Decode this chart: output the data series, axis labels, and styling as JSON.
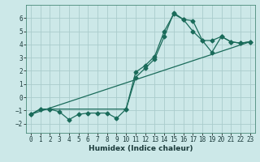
{
  "title": "",
  "xlabel": "Humidex (Indice chaleur)",
  "background_color": "#cce8e8",
  "grid_color": "#aacccc",
  "line_color": "#1a6b5a",
  "xlim": [
    -0.5,
    23.5
  ],
  "ylim": [
    -2.7,
    7.0
  ],
  "yticks": [
    -2,
    -1,
    0,
    1,
    2,
    3,
    4,
    5,
    6
  ],
  "xticks": [
    0,
    1,
    2,
    3,
    4,
    5,
    6,
    7,
    8,
    9,
    10,
    11,
    12,
    13,
    14,
    15,
    16,
    17,
    18,
    19,
    20,
    21,
    22,
    23
  ],
  "series1_x": [
    0,
    1,
    2,
    10,
    11,
    12,
    13,
    14,
    15,
    16,
    17,
    18,
    19,
    20,
    21,
    22,
    23
  ],
  "series1_y": [
    -1.3,
    -0.9,
    -0.9,
    -0.9,
    1.9,
    2.4,
    3.1,
    5.0,
    6.3,
    5.9,
    5.8,
    4.3,
    4.3,
    4.6,
    4.2,
    4.1,
    4.2
  ],
  "series2_x": [
    0,
    1,
    2,
    3,
    4,
    5,
    6,
    7,
    8,
    9,
    10,
    11,
    12,
    13,
    14,
    15,
    16,
    17,
    18,
    19,
    20,
    21,
    22,
    23
  ],
  "series2_y": [
    -1.3,
    -0.9,
    -0.9,
    -1.1,
    -1.7,
    -1.3,
    -1.2,
    -1.2,
    -1.2,
    -1.6,
    -0.9,
    1.5,
    2.2,
    2.9,
    4.6,
    6.4,
    5.9,
    5.0,
    4.3,
    3.4,
    4.6,
    4.2,
    4.1,
    4.2
  ],
  "series3_x": [
    0,
    23
  ],
  "series3_y": [
    -1.3,
    4.2
  ],
  "marker_size": 2.5,
  "line_width": 0.9,
  "tick_fontsize": 5.5,
  "xlabel_fontsize": 6.5
}
